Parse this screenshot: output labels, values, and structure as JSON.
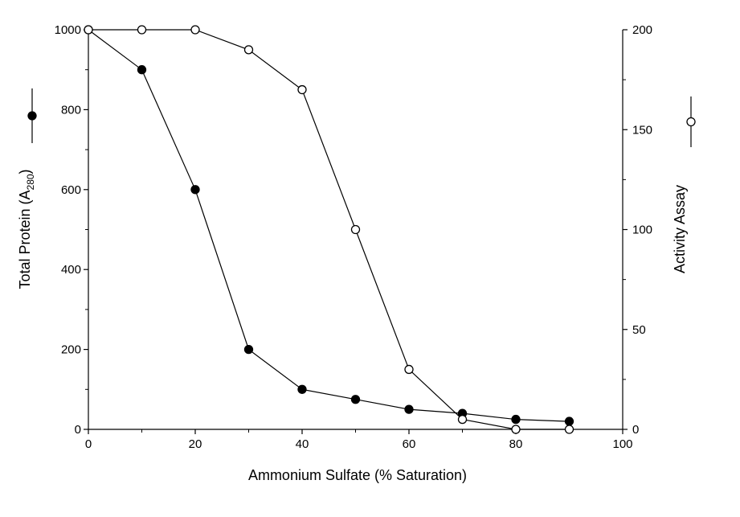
{
  "chart_data": {
    "type": "line",
    "xlabel": "Ammonium Sulfate (% Saturation)",
    "ylabel_left": {
      "text": "Total Protein (A",
      "subscript": "280",
      "suffix": ")"
    },
    "ylabel_right": "Activity Assay",
    "xlim": [
      0,
      100
    ],
    "ylim_left": [
      0,
      1000
    ],
    "ylim_right": [
      0,
      200
    ],
    "x_ticks": [
      "0",
      "20",
      "40",
      "60",
      "80",
      "100"
    ],
    "y_left_ticks": [
      "0",
      "200",
      "400",
      "600",
      "800",
      "1000"
    ],
    "y_right_ticks": [
      "0",
      "50",
      "100",
      "150",
      "200"
    ],
    "grid": false,
    "series": [
      {
        "axis": "left",
        "marker": "filled-circle",
        "color": "#000000",
        "x": [
          0,
          10,
          20,
          30,
          40,
          50,
          60,
          70,
          80,
          90
        ],
        "y": [
          1000,
          900,
          600,
          200,
          100,
          75,
          50,
          40,
          25,
          20
        ]
      },
      {
        "axis": "right",
        "marker": "open-circle",
        "color": "#000000",
        "x": [
          0,
          10,
          20,
          30,
          40,
          50,
          60,
          70,
          80,
          90
        ],
        "y": [
          200,
          200,
          200,
          190,
          170,
          100,
          30,
          5,
          0,
          0
        ]
      }
    ]
  }
}
